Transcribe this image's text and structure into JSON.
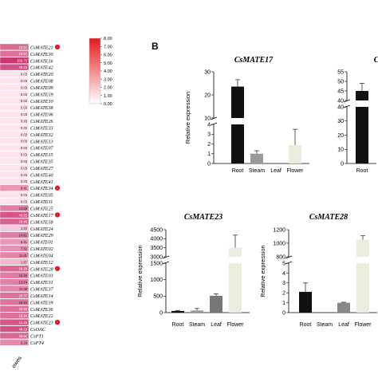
{
  "panel_label": "B",
  "heatmap": {
    "rows": [
      {
        "gene": "CsMATE21",
        "value": "23.51",
        "marked": true
      },
      {
        "gene": "CsMATE30",
        "value": "19.51",
        "marked": false
      },
      {
        "gene": "CsMATE16",
        "value": "100.73",
        "marked": false
      },
      {
        "gene": "CsMATE42",
        "value": "48.15",
        "marked": false
      },
      {
        "gene": "CsMATE20",
        "value": "0.03",
        "marked": false
      },
      {
        "gene": "CsMATE08",
        "value": "0.03",
        "marked": false
      },
      {
        "gene": "CsMATE09",
        "value": "0.03",
        "marked": false
      },
      {
        "gene": "CsMATE19",
        "value": "0.03",
        "marked": false
      },
      {
        "gene": "CsMATE10",
        "value": "0.03",
        "marked": false
      },
      {
        "gene": "CsMATE38",
        "value": "0.03",
        "marked": false
      },
      {
        "gene": "CsMATE06",
        "value": "0.03",
        "marked": false
      },
      {
        "gene": "CsMATE26",
        "value": "0.03",
        "marked": false
      },
      {
        "gene": "CsMATE33",
        "value": "0.03",
        "marked": false
      },
      {
        "gene": "CsMATE32",
        "value": "0.03",
        "marked": false
      },
      {
        "gene": "CsMATE13",
        "value": "0.03",
        "marked": false
      },
      {
        "gene": "CsMATE07",
        "value": "0.03",
        "marked": false
      },
      {
        "gene": "CsMATE15",
        "value": "0.03",
        "marked": false
      },
      {
        "gene": "CsMATE35",
        "value": "0.03",
        "marked": false
      },
      {
        "gene": "CsMATE27",
        "value": "0.03",
        "marked": false
      },
      {
        "gene": "CsMATE40",
        "value": "0.03",
        "marked": false
      },
      {
        "gene": "CsMATE41",
        "value": "0.03",
        "marked": false
      },
      {
        "gene": "CsMATE34",
        "value": "6.41",
        "marked": true
      },
      {
        "gene": "CsMATE05",
        "value": "0.03",
        "marked": false
      },
      {
        "gene": "CsMATE11",
        "value": "0.03",
        "marked": false
      },
      {
        "gene": "CsMATE25",
        "value": "13.69",
        "marked": false
      },
      {
        "gene": "CsMATE17",
        "value": "43.55",
        "marked": true
      },
      {
        "gene": "CsMATE18",
        "value": "29.49",
        "marked": false
      },
      {
        "gene": "CsMATE24",
        "value": "1.03",
        "marked": false
      },
      {
        "gene": "CsMATE29",
        "value": "14.61",
        "marked": false
      },
      {
        "gene": "CsMATE01",
        "value": "6.41",
        "marked": false
      },
      {
        "gene": "CsMATE02",
        "value": "7.82",
        "marked": false
      },
      {
        "gene": "CsMATE04",
        "value": "11.81",
        "marked": false
      },
      {
        "gene": "CsMATE12",
        "value": "1.97",
        "marked": false
      },
      {
        "gene": "CsMATE28",
        "value": "26.18",
        "marked": true
      },
      {
        "gene": "CsMATE03",
        "value": "15.29",
        "marked": false
      },
      {
        "gene": "CsMATE31",
        "value": "13.04",
        "marked": false
      },
      {
        "gene": "CsMATE37",
        "value": "11.39",
        "marked": false
      },
      {
        "gene": "CsMATE14",
        "value": "20.77",
        "marked": false
      },
      {
        "gene": "CsMATE39",
        "value": "18.43",
        "marked": false
      },
      {
        "gene": "CsMATE36",
        "value": "20.93",
        "marked": false
      },
      {
        "gene": "CsMATE22",
        "value": "19.34",
        "marked": false
      },
      {
        "gene": "CsMATE23",
        "value": "41.15",
        "marked": true
      },
      {
        "gene": "CsOAC",
        "value": "48.15",
        "marked": false
      },
      {
        "gene": "CsPT1",
        "value": "25.51",
        "marked": false
      },
      {
        "gene": "CsPT4",
        "value": "9.34",
        "marked": false
      }
    ],
    "column_label": "owes"
  },
  "color_scale": {
    "ticks": [
      "8.00",
      "7.00",
      "6.00",
      "5.00",
      "4.00",
      "3.00",
      "2.00",
      "1.00",
      "0.00"
    ],
    "high_color": "#e31a1c",
    "low_color": "#ffffff"
  },
  "chart_data": [
    {
      "type": "bar",
      "title": "CsMATE17",
      "ylabel": "Relative expression",
      "categories": [
        "Root",
        "Steam",
        "Leaf",
        "Flower"
      ],
      "values": [
        23.6,
        1.0,
        0.0,
        1.9
      ],
      "errors": [
        3.0,
        0.3,
        0.0,
        1.6
      ],
      "bar_colors": [
        "#111111",
        "#999999",
        "#bdbdbd",
        "#ececde"
      ],
      "axis_break": true,
      "lower_segment": {
        "range": [
          0,
          4
        ],
        "ticks": [
          "0",
          "1",
          "2",
          "3",
          "4"
        ]
      },
      "upper_segment": {
        "range": [
          10,
          30
        ],
        "ticks": [
          "10",
          "20",
          "30"
        ]
      }
    },
    {
      "type": "bar",
      "title": "Cs",
      "ylabel": "",
      "categories": [
        "Root"
      ],
      "values": [
        45.0
      ],
      "errors": [
        4.0
      ],
      "bar_colors": [
        "#111111"
      ],
      "axis_break": true,
      "lower_segment": {
        "range": [
          0,
          40
        ],
        "ticks": [
          "0",
          "10",
          "20",
          "30",
          "40"
        ]
      },
      "upper_segment": {
        "range": [
          40,
          55
        ],
        "ticks": [
          "40",
          "45",
          "50",
          "55"
        ]
      }
    },
    {
      "type": "bar",
      "title": "CsMATE23",
      "ylabel": "Relative expression",
      "categories": [
        "Root",
        "Steam",
        "Leaf",
        "Flower"
      ],
      "values": [
        50,
        65,
        510,
        3500
      ],
      "errors": [
        15,
        60,
        60,
        700
      ],
      "bar_colors": [
        "#111111",
        "#999999",
        "#777777",
        "#ececde"
      ],
      "axis_break": true,
      "lower_segment": {
        "range": [
          0,
          1500
        ],
        "ticks": [
          "0",
          "500",
          "1000",
          "1500"
        ]
      },
      "upper_segment": {
        "range": [
          3000,
          4500
        ],
        "ticks": [
          "3000",
          "3500",
          "4000",
          "4500"
        ]
      }
    },
    {
      "type": "bar",
      "title": "CsMATE28",
      "ylabel": "Relative expression",
      "categories": [
        "Root",
        "Steam",
        "Leaf",
        "Flower"
      ],
      "values": [
        2.1,
        0.0,
        1.0,
        1050
      ],
      "errors": [
        0.9,
        0.0,
        0.05,
        60
      ],
      "bar_colors": [
        "#111111",
        "#999999",
        "#888888",
        "#ececde"
      ],
      "axis_break": true,
      "lower_segment": {
        "range": [
          0,
          5
        ],
        "ticks": [
          "0",
          "1",
          "2",
          "3",
          "4",
          "5"
        ]
      },
      "upper_segment": {
        "range": [
          800,
          1200
        ],
        "ticks": [
          "800",
          "1000",
          "1200"
        ]
      }
    }
  ]
}
